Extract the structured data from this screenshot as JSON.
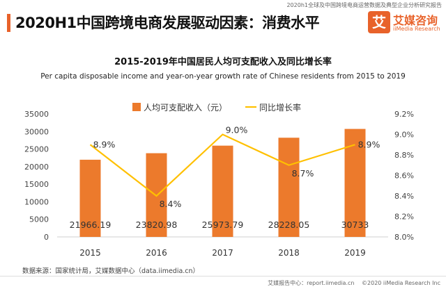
{
  "top_caption": "2020h1全球及中国跨境电商运营数据及典型企业分析研究报告",
  "header": {
    "title": "2020H1中国跨境电商发展驱动因素：消费水平"
  },
  "logo": {
    "mark": "艾",
    "name": "艾媒咨询",
    "sub": "iiMedia Research"
  },
  "colors": {
    "bar": "#ec7a2c",
    "line": "#ffc000",
    "accent": "#e8622a"
  },
  "chart_data": {
    "type": "bar",
    "title": "2015-2019年中国居民人均可支配收入及同比增长率",
    "subtitle": "Per capita disposable income and year-on-year growth rate of Chinese residents from  2015 to 2019",
    "categories": [
      "2015",
      "2016",
      "2017",
      "2018",
      "2019"
    ],
    "series": [
      {
        "name": "人均可支配收入（元）",
        "type": "bar",
        "axis": "left",
        "values": [
          21966.19,
          23820.98,
          25973.79,
          28228.05,
          30733
        ],
        "labels": [
          "21966.19",
          "23820.98",
          "25973.79",
          "28228.05",
          "30733"
        ]
      },
      {
        "name": "同比增长率",
        "type": "line",
        "axis": "right",
        "values": [
          8.9,
          8.4,
          9.0,
          8.7,
          8.9
        ],
        "labels": [
          "8.9%",
          "8.4%",
          "9.0%",
          "8.7%",
          "8.9%"
        ]
      }
    ],
    "left_axis": {
      "ylim": [
        0,
        35000
      ],
      "ticks": [
        "0",
        "5000",
        "10000",
        "15000",
        "20000",
        "25000",
        "30000",
        "35000"
      ]
    },
    "right_axis": {
      "ylim": [
        8.0,
        9.2
      ],
      "ticks": [
        "8.0%",
        "8.2%",
        "8.4%",
        "8.6%",
        "8.8%",
        "9.0%",
        "9.2%"
      ]
    },
    "grid": false,
    "legend": "top-center"
  },
  "source": "数据来源：国家统计局，艾媒数据中心（data.iimedia.cn）",
  "footer": {
    "left": "艾媒报告中心：report.iimedia.cn",
    "right": "©2020  iiMedia Research  Inc"
  }
}
